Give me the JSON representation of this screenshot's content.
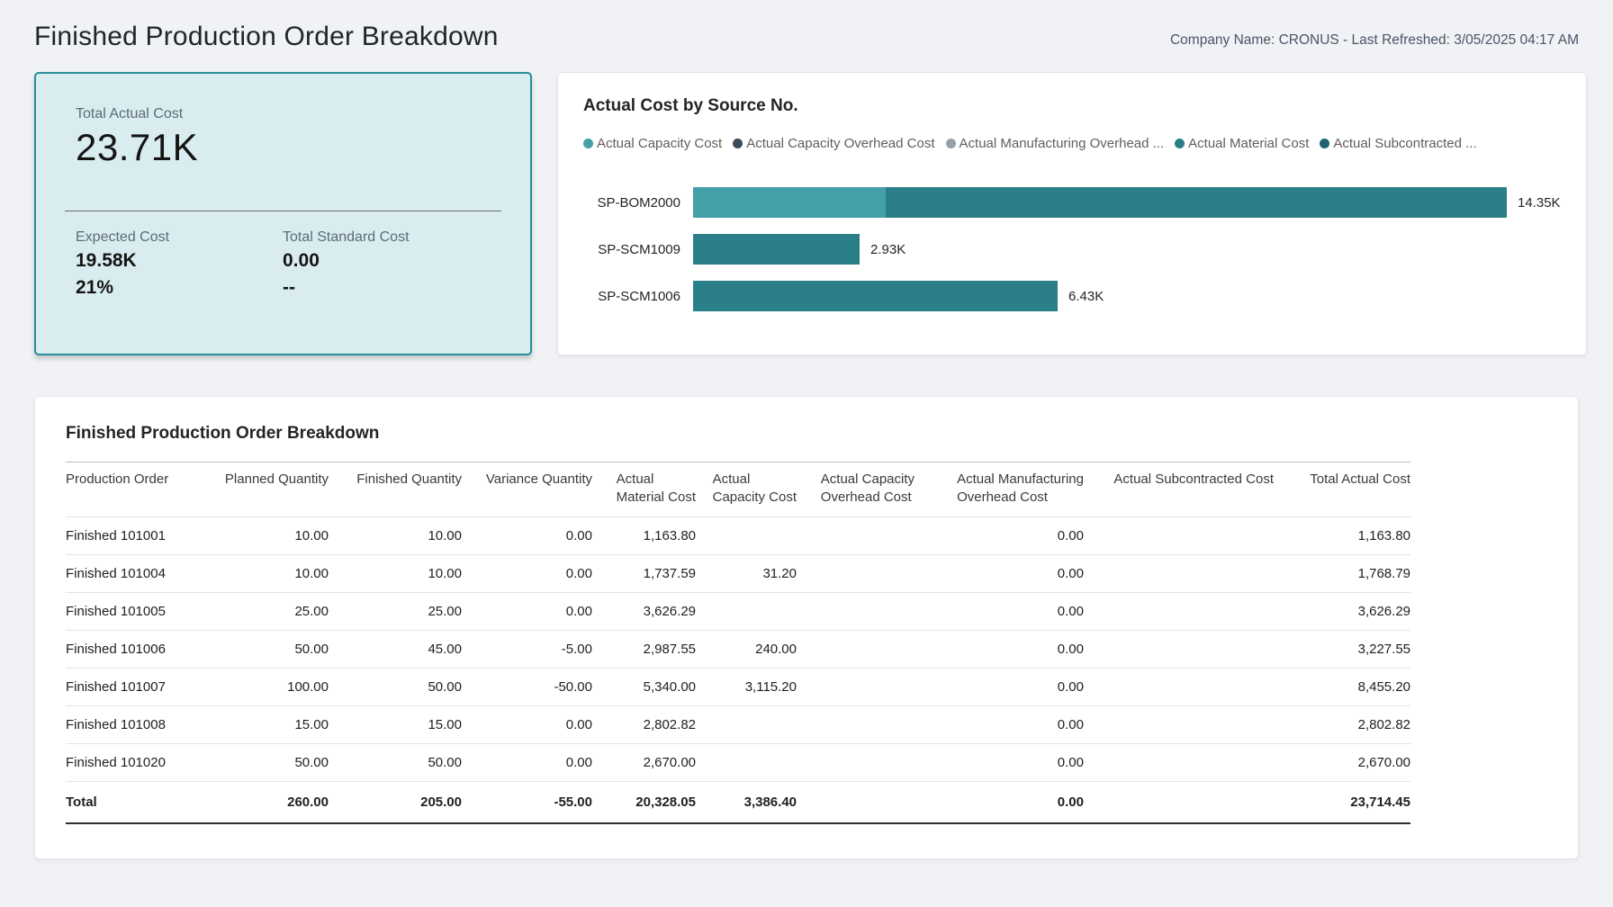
{
  "header": {
    "title": "Finished Production Order Breakdown",
    "meta": "Company Name: CRONUS - Last Refreshed: 3/05/2025 04:17 AM"
  },
  "kpi_card": {
    "title": "Total Actual Cost",
    "value": "23.71K",
    "secondary": [
      {
        "label": "Expected Cost",
        "value": "19.58K",
        "sub": "21%"
      },
      {
        "label": "Total Standard Cost",
        "value": "0.00",
        "sub": "--"
      }
    ],
    "background": "#d9edf0",
    "border_color": "#2a8b9a"
  },
  "chart_data": {
    "type": "bar",
    "orientation": "horizontal",
    "stacked": true,
    "title": "Actual Cost by Source No.",
    "categories": [
      "SP-BOM2000",
      "SP-SCM1009",
      "SP-SCM1006"
    ],
    "series": [
      {
        "name": "Actual Capacity Cost",
        "color": "#459fa9",
        "values": [
          3.39,
          0,
          0
        ]
      },
      {
        "name": "Actual Capacity Overhead Cost",
        "color": "#3d4a5c",
        "values": [
          0,
          0,
          0
        ]
      },
      {
        "name": "Actual Manufacturing Overhead ...",
        "color": "#98a0a7",
        "values": [
          0,
          0,
          0
        ]
      },
      {
        "name": "Actual Material Cost",
        "color": "#2a7f88",
        "values": [
          10.96,
          2.93,
          6.43
        ]
      },
      {
        "name": "Actual Subcontracted ...",
        "color": "#1e6470",
        "values": [
          0,
          0,
          0
        ]
      }
    ],
    "totals": [
      14.35,
      2.93,
      6.43
    ],
    "total_labels": [
      "14.35K",
      "2.93K",
      "6.43K"
    ],
    "unit": "K",
    "xlim": [
      0,
      15.5
    ],
    "legend_position": "top",
    "grid": false
  },
  "table": {
    "title": "Finished Production Order Breakdown",
    "columns": [
      {
        "lines": [
          "Production Order"
        ],
        "align": "left"
      },
      {
        "lines": [
          "Planned Quantity"
        ],
        "align": "right"
      },
      {
        "lines": [
          "Finished Quantity"
        ],
        "align": "right"
      },
      {
        "lines": [
          "Variance Quantity"
        ],
        "align": "right"
      },
      {
        "lines": [
          "Actual",
          "Material Cost"
        ],
        "align": "right"
      },
      {
        "lines": [
          "Actual",
          "Capacity Cost"
        ],
        "align": "right"
      },
      {
        "lines": [
          "Actual Capacity",
          "Overhead Cost"
        ],
        "align": "right"
      },
      {
        "lines": [
          "Actual Manufacturing",
          "Overhead Cost"
        ],
        "align": "right"
      },
      {
        "lines": [
          "Actual Subcontracted Cost"
        ],
        "align": "right"
      },
      {
        "lines": [
          "Total Actual Cost"
        ],
        "align": "right"
      }
    ],
    "rows": [
      [
        "Finished 101001",
        "10.00",
        "10.00",
        "0.00",
        "1,163.80",
        "",
        "",
        "0.00",
        "",
        "1,163.80"
      ],
      [
        "Finished 101004",
        "10.00",
        "10.00",
        "0.00",
        "1,737.59",
        "31.20",
        "",
        "0.00",
        "",
        "1,768.79"
      ],
      [
        "Finished 101005",
        "25.00",
        "25.00",
        "0.00",
        "3,626.29",
        "",
        "",
        "0.00",
        "",
        "3,626.29"
      ],
      [
        "Finished 101006",
        "50.00",
        "45.00",
        "-5.00",
        "2,987.55",
        "240.00",
        "",
        "0.00",
        "",
        "3,227.55"
      ],
      [
        "Finished 101007",
        "100.00",
        "50.00",
        "-50.00",
        "5,340.00",
        "3,115.20",
        "",
        "0.00",
        "",
        "8,455.20"
      ],
      [
        "Finished 101008",
        "15.00",
        "15.00",
        "0.00",
        "2,802.82",
        "",
        "",
        "0.00",
        "",
        "2,802.82"
      ],
      [
        "Finished 101020",
        "50.00",
        "50.00",
        "0.00",
        "2,670.00",
        "",
        "",
        "0.00",
        "",
        "2,670.00"
      ]
    ],
    "total_row": [
      "Total",
      "260.00",
      "205.00",
      "-55.00",
      "20,328.05",
      "3,386.40",
      "",
      "0.00",
      "",
      "23,714.45"
    ]
  },
  "colors": {
    "page_background": "#f0f2f5",
    "panel_background": "#ffffff",
    "kpi_background": "#d9edf0",
    "kpi_border": "#2a8b9a",
    "teal_light": "#459fa9",
    "teal": "#2a7f88",
    "teal_dark": "#1e6470",
    "slate": "#3d4a5c",
    "gray": "#98a0a7"
  }
}
